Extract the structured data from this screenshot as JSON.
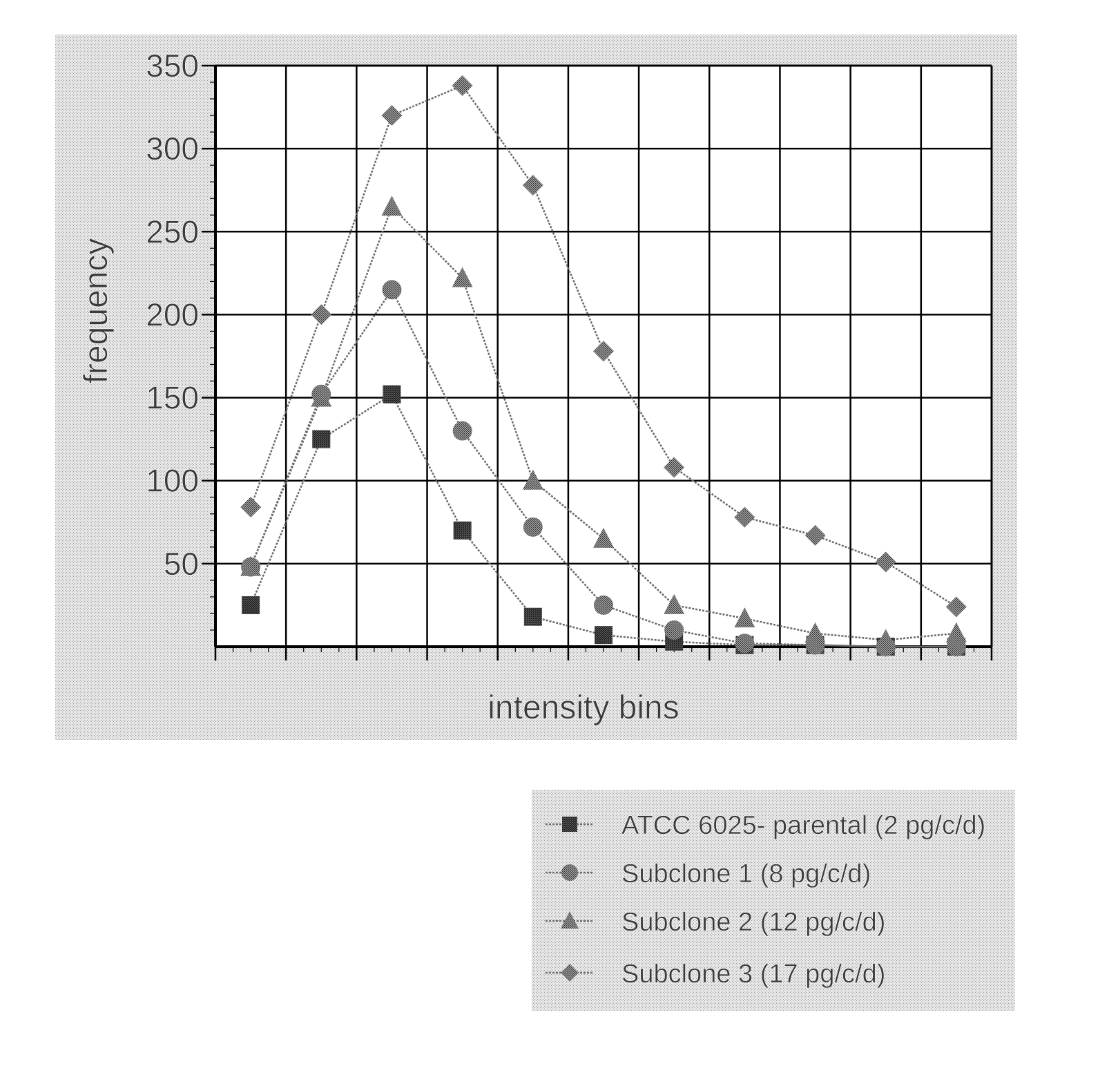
{
  "chart_data": {
    "type": "line",
    "title": "",
    "xlabel": "intensity bins",
    "ylabel": "frequency",
    "ylim": [
      0,
      350
    ],
    "yticks": [
      50,
      100,
      150,
      200,
      250,
      300,
      350
    ],
    "xlim": [
      0,
      11
    ],
    "x": [
      0.5,
      1.5,
      2.5,
      3.5,
      4.5,
      5.5,
      6.5,
      7.5,
      8.5,
      9.5,
      10.5
    ],
    "grid": true,
    "legend_position": "bottom-right",
    "series": [
      {
        "name": "ATCC 6025- parental (2 pg/c/d)",
        "marker": "square",
        "values": [
          25,
          125,
          152,
          70,
          18,
          7,
          3,
          1,
          1,
          0,
          0
        ]
      },
      {
        "name": "Subclone 1 (8 pg/c/d)",
        "marker": "circle",
        "values": [
          48,
          152,
          215,
          130,
          72,
          25,
          10,
          2,
          1,
          0,
          0
        ]
      },
      {
        "name": "Subclone 2 (12 pg/c/d)",
        "marker": "triangle",
        "values": [
          48,
          150,
          265,
          222,
          100,
          65,
          25,
          17,
          8,
          4,
          8
        ]
      },
      {
        "name": "Subclone 3 (17 pg/c/d)",
        "marker": "diamond",
        "values": [
          84,
          200,
          320,
          338,
          278,
          178,
          108,
          78,
          67,
          51,
          24
        ]
      }
    ]
  }
}
